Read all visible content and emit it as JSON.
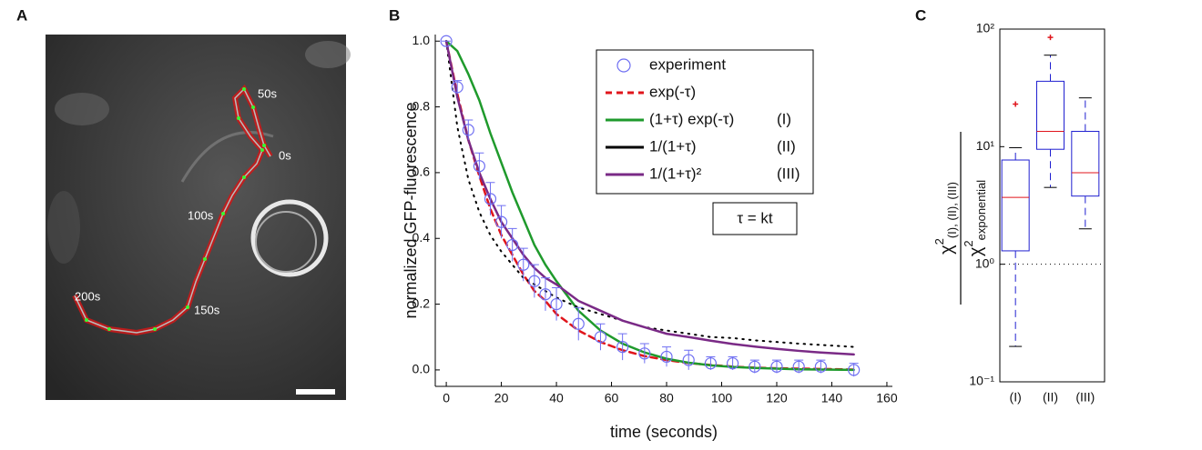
{
  "panel_a": {
    "label": "A",
    "time_labels": [
      "50s",
      "0s",
      "100s",
      "150s",
      "200s"
    ]
  },
  "chart_data": [
    {
      "type": "line",
      "panel_label": "B",
      "xlabel": "time (seconds)",
      "ylabel": "normalized GFP-fluorescence",
      "x": [
        0,
        4,
        8,
        12,
        16,
        20,
        24,
        28,
        32,
        36,
        40,
        48,
        56,
        64,
        72,
        80,
        88,
        96,
        104,
        112,
        120,
        128,
        136,
        148
      ],
      "series": [
        {
          "name": "experiment",
          "color": "#6f6ff2",
          "marker": "circle",
          "values": [
            1.0,
            0.86,
            0.73,
            0.62,
            0.52,
            0.45,
            0.38,
            0.32,
            0.27,
            0.23,
            0.2,
            0.14,
            0.1,
            0.07,
            0.05,
            0.04,
            0.03,
            0.02,
            0.02,
            0.01,
            0.01,
            0.01,
            0.01,
            0.0
          ],
          "errors": [
            0,
            0.02,
            0.03,
            0.04,
            0.05,
            0.05,
            0.05,
            0.05,
            0.05,
            0.05,
            0.05,
            0.05,
            0.04,
            0.04,
            0.03,
            0.03,
            0.03,
            0.02,
            0.02,
            0.02,
            0.02,
            0.02,
            0.02,
            0.02
          ]
        },
        {
          "name": "exp(-τ)",
          "color": "#e0151b",
          "style": "dashed",
          "values": [
            1.0,
            0.84,
            0.7,
            0.59,
            0.49,
            0.41,
            0.35,
            0.29,
            0.24,
            0.21,
            0.17,
            0.12,
            0.085,
            0.06,
            0.042,
            0.03,
            0.021,
            0.015,
            0.01,
            0.007,
            0.005,
            0.004,
            0.003,
            0.001
          ]
        },
        {
          "name": "(1+τ) exp(-τ)",
          "tag": "(I)",
          "color": "#1f9a2c",
          "style": "solid",
          "values": [
            1.0,
            0.97,
            0.9,
            0.82,
            0.72,
            0.63,
            0.54,
            0.46,
            0.38,
            0.32,
            0.27,
            0.18,
            0.12,
            0.08,
            0.053,
            0.034,
            0.022,
            0.014,
            0.009,
            0.006,
            0.004,
            0.002,
            0.001,
            0
          ]
        },
        {
          "name": "1/(1+τ)",
          "tag": "(II)",
          "color": "#000000",
          "style": "dotted",
          "values": [
            1.0,
            0.74,
            0.58,
            0.48,
            0.41,
            0.36,
            0.32,
            0.28,
            0.26,
            0.24,
            0.22,
            0.19,
            0.17,
            0.15,
            0.13,
            0.12,
            0.11,
            0.1,
            0.097,
            0.09,
            0.085,
            0.08,
            0.076,
            0.07
          ]
        },
        {
          "name": "1/(1+τ)²",
          "tag": "(III)",
          "color": "#7a2a86",
          "style": "solid",
          "values": [
            1.0,
            0.83,
            0.7,
            0.6,
            0.52,
            0.45,
            0.4,
            0.35,
            0.31,
            0.28,
            0.26,
            0.21,
            0.18,
            0.15,
            0.13,
            0.11,
            0.1,
            0.089,
            0.079,
            0.071,
            0.064,
            0.058,
            0.053,
            0.047
          ]
        }
      ],
      "annotation": "τ = kt",
      "legend": "upper right",
      "xlim": [
        -4,
        162
      ],
      "xticks": [
        0,
        20,
        40,
        60,
        80,
        100,
        120,
        140,
        160
      ],
      "ylim": [
        -0.05,
        1.02
      ],
      "yticks": [
        {
          "value": 0,
          "label": "0.0"
        },
        0.2,
        0.4,
        0.6,
        0.8,
        {
          "value": 1,
          "label": "1.0"
        }
      ]
    },
    {
      "type": "box",
      "panel_label": "C",
      "log_y": true,
      "color": "#1f1fd0",
      "median_color": "#e0151b",
      "ylabel": {
        "numerator": {
          "base": "χ",
          "sup": "2",
          "sub": "(I), (II), (III)"
        },
        "denominator": {
          "base": "χ",
          "sup": "2",
          "sub": "exponential"
        }
      },
      "categories": [
        "(I)",
        "(II)",
        "(III)"
      ],
      "boxes": [
        {
          "whislo": 0.2,
          "q1": 1.3,
          "med": 3.7,
          "q3": 7.7,
          "whishi": 9.8,
          "fliers": [
            23
          ]
        },
        {
          "whislo": 4.5,
          "q1": 9.5,
          "med": 13.5,
          "q3": 36,
          "whishi": 60,
          "fliers": [
            85
          ]
        },
        {
          "whislo": 2,
          "q1": 3.8,
          "med": 6,
          "q3": 13.5,
          "whishi": 26,
          "fliers": []
        }
      ],
      "reference_line": 1,
      "ylim": [
        0.1,
        100
      ],
      "yticks": [
        {
          "value": 0.1,
          "label": "10⁻¹"
        },
        {
          "value": 1,
          "label": "10⁰"
        },
        {
          "value": 10,
          "label": "10¹"
        },
        {
          "value": 100,
          "label": "10²"
        }
      ]
    }
  ]
}
